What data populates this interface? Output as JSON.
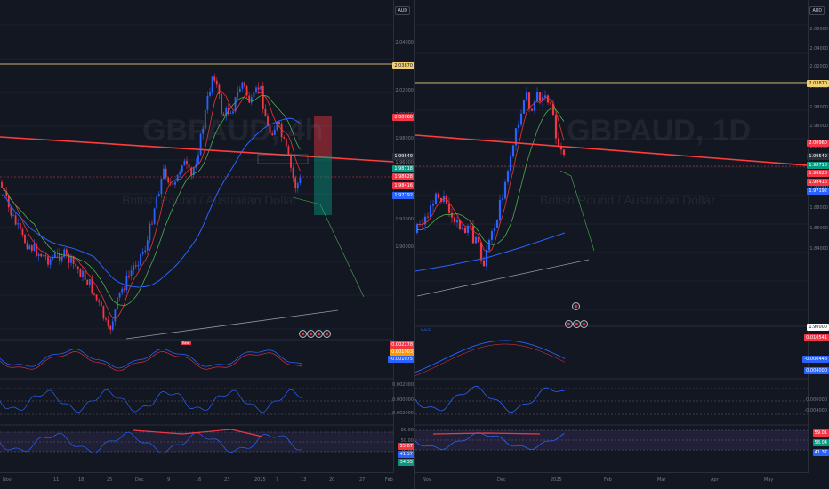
{
  "left": {
    "symbol": "GBPAUD, 4h",
    "description": "British Pound / Australian Dollar",
    "currency": "AUD",
    "price_labels": [
      "2.04000",
      "2.02000",
      "2.00000",
      "1.98000",
      "1.96000",
      "1.94000",
      "1.92000",
      "1.90000"
    ],
    "badges": [
      {
        "text": "2.03870",
        "bg": "#f0ce72",
        "fg": "#131722"
      },
      {
        "text": "2.00960",
        "bg": "#f23645",
        "fg": "#ffffff"
      },
      {
        "text": "1.99549",
        "bg": "#2a2e39",
        "fg": "#ffffff"
      },
      {
        "text": "1.98718",
        "bg": "#089981",
        "fg": "#ffffff"
      },
      {
        "text": "1.98628",
        "bg": "#f23645",
        "fg": "#ffffff"
      },
      {
        "text": "1.98416",
        "bg": "#f23645",
        "fg": "#ffffff"
      },
      {
        "text": "1.97192",
        "bg": "#2962ff",
        "fg": "#ffffff"
      }
    ],
    "dates": [
      "Nov",
      "11",
      "18",
      "25",
      "Dec",
      "9",
      "16",
      "23",
      "2025",
      "7",
      "13",
      "20",
      "27",
      "Feb"
    ],
    "tag": "Bear",
    "ind_badges": [
      "0.002278",
      "0.001903",
      "-0.001075",
      "55.87",
      "41.37",
      "34.35"
    ],
    "osc_levels": [
      "0.002000",
      "0.000000",
      "-0.002000"
    ],
    "rsi_levels": [
      "80.00",
      "50.00",
      "20.00"
    ]
  },
  "right": {
    "symbol": "GBPAUD, 1D",
    "description": "British Pound / Australian Dollar",
    "currency": "AUD",
    "price_labels": [
      "2.06000",
      "2.04000",
      "2.02000",
      "2.00000",
      "1.98000",
      "1.96000",
      "1.94000",
      "1.92000",
      "1.90000",
      "1.88000",
      "1.86000",
      "1.84000"
    ],
    "badges": [
      {
        "text": "2.03870",
        "bg": "#f0ce72",
        "fg": "#131722"
      },
      {
        "text": "2.00960",
        "bg": "#f23645",
        "fg": "#ffffff"
      },
      {
        "text": "1.99549",
        "bg": "#2a2e39",
        "fg": "#ffffff"
      },
      {
        "text": "1.98718",
        "bg": "#089981",
        "fg": "#ffffff"
      },
      {
        "text": "1.98628",
        "bg": "#f23645",
        "fg": "#ffffff"
      },
      {
        "text": "1.98416",
        "bg": "#f23645",
        "fg": "#ffffff"
      },
      {
        "text": "1.97192",
        "bg": "#2962ff",
        "fg": "#ffffff"
      },
      {
        "text": "1.90000",
        "bg": "#ffffff",
        "fg": "#131722"
      },
      {
        "text": "0.010541",
        "bg": "#f23645",
        "fg": "#ffffff"
      },
      {
        "text": "-0.000448",
        "bg": "#2962ff",
        "fg": "#ffffff"
      }
    ],
    "dates": [
      "Nov",
      "Dec",
      "2025",
      "Feb",
      "Mar",
      "Apr",
      "May"
    ],
    "ind_badges": [
      "0.004000",
      "0.000000",
      "-0.004000",
      "59.01",
      "58.04",
      "41.37"
    ],
    "ind_label": "MACD"
  },
  "colors": {
    "bg": "#131722",
    "grid": "#2a2e39",
    "up": "#2962ff",
    "down": "#f23645",
    "ma_blue": "#2962ff",
    "ma_green": "#4caf50",
    "ma_red": "#e53935",
    "trend": "#ff3d3d",
    "resist": "#c9b26d",
    "support": "#9598a1"
  }
}
